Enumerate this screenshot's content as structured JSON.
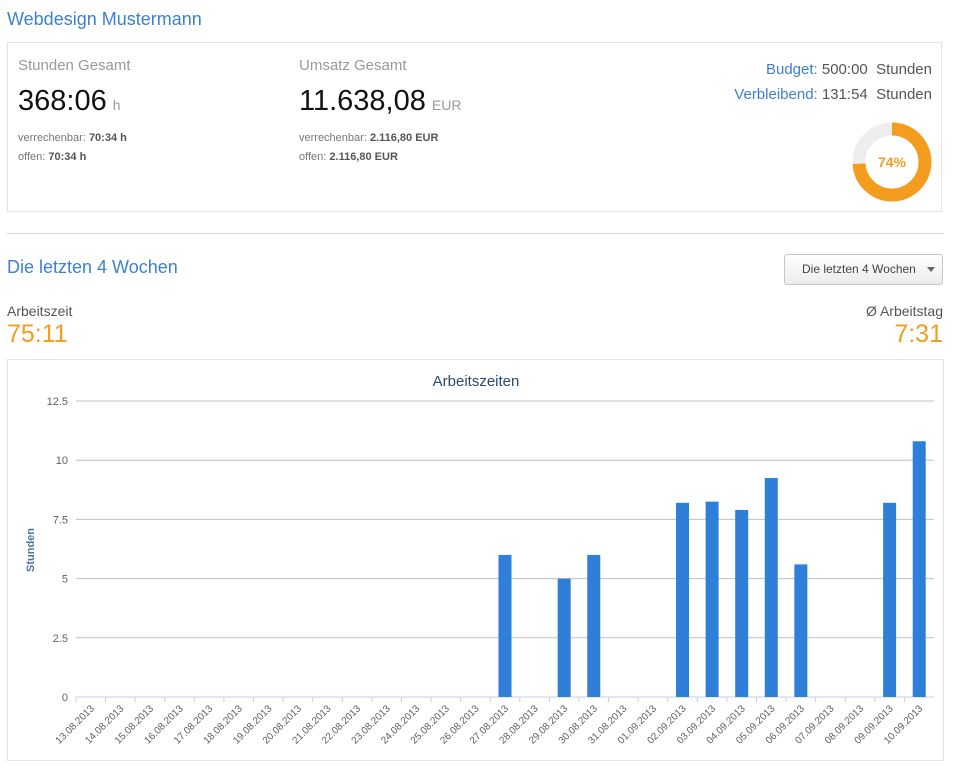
{
  "header": {
    "title": "Webdesign Mustermann"
  },
  "summary": {
    "hours": {
      "label": "Stunden Gesamt",
      "value": "368:06",
      "unit": "h",
      "billable_label": "verrechenbar:",
      "billable_value": "70:34 h",
      "open_label": "offen:",
      "open_value": "70:34 h"
    },
    "revenue": {
      "label": "Umsatz Gesamt",
      "value": "11.638,08",
      "unit": "EUR",
      "billable_label": "verrechenbar:",
      "billable_value": "2.116,80 EUR",
      "open_label": "offen:",
      "open_value": "2.116,80 EUR"
    },
    "budget": {
      "budget_label": "Budget:",
      "budget_value": "500:00",
      "budget_unit": "Stunden",
      "remaining_label": "Verbleibend:",
      "remaining_value": "131:54",
      "remaining_unit": "Stunden",
      "percent_label": "74%",
      "percent": 74,
      "color_fill": "#f39c1e",
      "color_track": "#eeeeee"
    }
  },
  "period": {
    "title": "Die letzten 4 Wochen",
    "dropdown_value": "Die letzten 4 Wochen",
    "worktime_label": "Arbeitszeit",
    "worktime_value": "75:11",
    "avg_label": "Ø Arbeitstag",
    "avg_value": "7:31"
  },
  "chart_data": {
    "type": "bar",
    "title": "Arbeitszeiten",
    "ylabel": "Stunden",
    "xlabel": "",
    "ylim": [
      0,
      12.5
    ],
    "yticks": [
      "0",
      "2.5",
      "5",
      "7.5",
      "10",
      "12.5"
    ],
    "grid": true,
    "color": "#2f7ed8",
    "categories": [
      "13.08.2013",
      "14.08.2013",
      "15.08.2013",
      "16.08.2013",
      "17.08.2013",
      "18.08.2013",
      "19.08.2013",
      "20.08.2013",
      "21.08.2013",
      "22.08.2013",
      "23.08.2013",
      "24.08.2013",
      "25.08.2013",
      "26.08.2013",
      "27.08.2013",
      "28.08.2013",
      "29.08.2013",
      "30.08.2013",
      "31.08.2013",
      "01.09.2013",
      "02.09.2013",
      "03.09.2013",
      "04.09.2013",
      "05.09.2013",
      "06.09.2013",
      "07.09.2013",
      "08.09.2013",
      "09.09.2013",
      "10.09.2013"
    ],
    "values": [
      0,
      0,
      0,
      0,
      0,
      0,
      0,
      0,
      0,
      0,
      0,
      0,
      0,
      0,
      6,
      0,
      5,
      6,
      0,
      0,
      8.2,
      8.25,
      7.9,
      9.25,
      5.6,
      0,
      0,
      8.2,
      10.8
    ]
  }
}
